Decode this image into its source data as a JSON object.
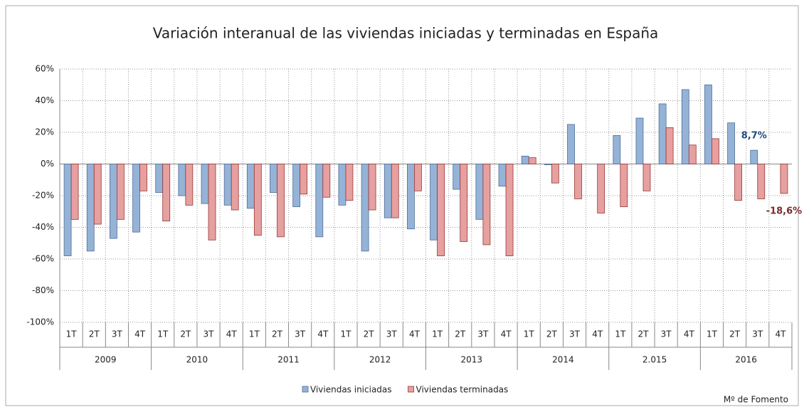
{
  "chart_data": {
    "type": "bar",
    "title": "Variación interanual de las viviendas iniciadas y terminadas en España",
    "categories": [
      "1T",
      "2T",
      "3T",
      "4T",
      "1T",
      "2T",
      "3T",
      "4T",
      "1T",
      "2T",
      "3T",
      "4T",
      "1T",
      "2T",
      "3T",
      "4T",
      "1T",
      "2T",
      "3T",
      "4T",
      "1T",
      "2T",
      "3T",
      "4T",
      "1T",
      "2T",
      "3T",
      "4T",
      "1T",
      "2T",
      "3T",
      "4T"
    ],
    "group_labels": [
      "2009",
      "2010",
      "2011",
      "2012",
      "2013",
      "2014",
      "2.015",
      "2016"
    ],
    "series": [
      {
        "name": "Viviendas iniciadas",
        "color": "#95b3d7",
        "stroke": "#4f6d96",
        "label_color": "#1f497d",
        "values": [
          -58,
          -55,
          -47,
          -43,
          -18,
          -20,
          -25,
          -26,
          -28,
          -18,
          -27,
          -46,
          -26,
          -55,
          -34,
          -41,
          -48,
          -16,
          -35,
          -14,
          5,
          -0.5,
          25,
          0,
          18,
          29,
          38,
          47,
          50,
          26,
          8.7,
          null
        ],
        "value_labels": [
          null,
          null,
          null,
          null,
          null,
          null,
          null,
          null,
          null,
          null,
          null,
          null,
          null,
          null,
          null,
          null,
          null,
          null,
          null,
          null,
          null,
          null,
          null,
          null,
          null,
          null,
          null,
          null,
          null,
          null,
          "8,7%",
          null
        ]
      },
      {
        "name": "Viviendas terminadas",
        "color": "#e6a0a0",
        "stroke": "#953735",
        "label_color": "#7b2c2c",
        "values": [
          -35,
          -38,
          -35,
          -17,
          -36,
          -26,
          -48,
          -29,
          -45,
          -46,
          -19,
          -21,
          -23,
          -29,
          -34,
          -17,
          -58,
          -49,
          -51,
          -58,
          4,
          -12,
          -22,
          -31,
          -27,
          -17,
          23,
          12,
          16,
          -23,
          -22,
          -18.6
        ],
        "value_labels": [
          null,
          null,
          null,
          null,
          null,
          null,
          null,
          null,
          null,
          null,
          null,
          null,
          null,
          null,
          null,
          null,
          null,
          null,
          null,
          null,
          null,
          null,
          null,
          null,
          null,
          null,
          null,
          null,
          null,
          null,
          null,
          "-18,6%"
        ]
      }
    ],
    "ylim": [
      -100,
      60
    ],
    "yticks": [
      {
        "value": -100,
        "label": "-100%"
      },
      {
        "value": -80,
        "label": "-80%"
      },
      {
        "value": -60,
        "label": "-60%"
      },
      {
        "value": -40,
        "label": "-40%"
      },
      {
        "value": -20,
        "label": "-20%"
      },
      {
        "value": 0,
        "label": "0%"
      },
      {
        "value": 20,
        "label": "20%"
      },
      {
        "value": 40,
        "label": "40%"
      },
      {
        "value": 60,
        "label": "60%"
      }
    ],
    "grid": true,
    "legend": "bottom",
    "source": "Mº  de Fomento"
  }
}
